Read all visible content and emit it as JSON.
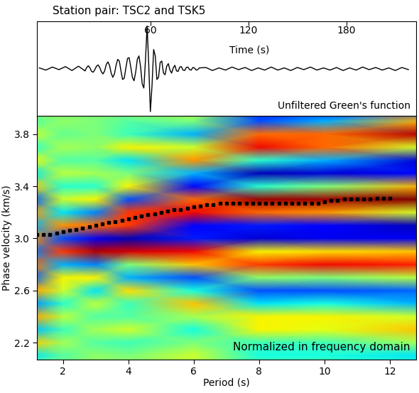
{
  "chart_data": [
    {
      "type": "line",
      "title": "Station pair: TSC2 and TSK5",
      "xlabel": "Time (s)",
      "annotation": "Unfiltered Green's function",
      "x": [
        -8,
        -4,
        0,
        4,
        8,
        12,
        16,
        20,
        21,
        22,
        23,
        24,
        25,
        26,
        27,
        28,
        29,
        30,
        31,
        32,
        33,
        34,
        35,
        36,
        37,
        38,
        39,
        40,
        41,
        42,
        43,
        44,
        45,
        46,
        47,
        48,
        49,
        50,
        51,
        52,
        53,
        54,
        55,
        56,
        57,
        58,
        59,
        60,
        61,
        62,
        63,
        64,
        65,
        66,
        67,
        68,
        69,
        70,
        71,
        72,
        73,
        74,
        75,
        76,
        77,
        78,
        79,
        80,
        81,
        82,
        83,
        84,
        85,
        86,
        87,
        88,
        89,
        90,
        94,
        98,
        102,
        106,
        110,
        114,
        118,
        122,
        126,
        130,
        134,
        138,
        142,
        146,
        150,
        154,
        158,
        162,
        166,
        170,
        174,
        178,
        182,
        186,
        190,
        194,
        198,
        202,
        206,
        210,
        214,
        218
      ],
      "values": [
        0.02,
        -0.03,
        0.04,
        -0.02,
        0.05,
        -0.04,
        0.06,
        -0.05,
        0.03,
        0.07,
        0.02,
        -0.06,
        -0.08,
        -0.02,
        0.06,
        0.09,
        0.03,
        -0.07,
        -0.12,
        -0.05,
        0.1,
        0.16,
        0.08,
        -0.1,
        -0.2,
        -0.12,
        0.08,
        0.22,
        0.18,
        -0.05,
        -0.25,
        -0.22,
        0.02,
        0.24,
        0.26,
        0.04,
        -0.2,
        -0.28,
        -0.08,
        0.22,
        0.3,
        0.05,
        -0.35,
        -0.45,
        0.2,
        1.0,
        0.1,
        -1.0,
        -0.4,
        0.45,
        0.3,
        -0.25,
        -0.2,
        0.15,
        0.18,
        -0.1,
        -0.14,
        0.06,
        0.12,
        -0.03,
        -0.1,
        0.02,
        0.08,
        -0.05,
        -0.06,
        0.04,
        0.05,
        -0.03,
        -0.04,
        0.03,
        0.04,
        -0.02,
        -0.03,
        0.03,
        0.02,
        -0.03,
        -0.02,
        0.02,
        0.03,
        -0.04,
        0.02,
        -0.03,
        0.04,
        -0.02,
        0.03,
        -0.04,
        0.02,
        -0.03,
        0.04,
        -0.03,
        0.02,
        -0.04,
        0.03,
        -0.02,
        0.04,
        -0.03,
        0.02,
        -0.03,
        0.03,
        -0.04,
        0.02,
        -0.03,
        0.04,
        -0.02,
        0.03,
        -0.03,
        0.02,
        -0.04,
        0.03,
        -0.02
      ],
      "color": "black",
      "xlim": [
        -9.5,
        222.7
      ],
      "xticks": [
        60,
        120,
        180
      ],
      "ylim": [
        -1.1,
        1.1
      ],
      "yticks": [],
      "tick_labels": "x"
    },
    {
      "type": "heatmap",
      "xlabel": "Period (s)",
      "ylabel": "Phase velocity (km/s)",
      "annotation": "Normalized in frequency domain",
      "x": [
        1,
        2,
        3,
        4,
        6,
        8,
        10,
        13
      ],
      "y": [
        2.0,
        2.1,
        2.2,
        2.3,
        2.4,
        2.5,
        2.6,
        2.7,
        2.8,
        2.9,
        3.0,
        3.1,
        3.2,
        3.3,
        3.4,
        3.5,
        3.6,
        3.7,
        3.8,
        3.9,
        4.0
      ],
      "cells": [
        [
          0.1,
          0.05,
          0,
          0.1,
          0,
          0,
          0,
          -0.2
        ],
        [
          -0.3,
          -0.1,
          0.05,
          0,
          0.2,
          -0.25,
          -0.25,
          -0.3
        ],
        [
          0.4,
          0.1,
          -0.1,
          -0.15,
          0,
          -0.15,
          -0.15,
          0.1
        ],
        [
          -0.4,
          -0.15,
          0.1,
          0.2,
          -0.25,
          0.3,
          0.25,
          0.4
        ],
        [
          0.5,
          0.15,
          -0.1,
          -0.1,
          0.1,
          0.3,
          0.3,
          0.2
        ],
        [
          -0.5,
          -0.2,
          0.15,
          -0.15,
          0.4,
          -0.3,
          -0.25,
          -0.4
        ],
        [
          0.5,
          0.2,
          -0.3,
          0.35,
          -0.25,
          -0.6,
          -0.6,
          -0.55
        ],
        [
          -0.6,
          0.3,
          0.3,
          -0.4,
          -0.6,
          0.05,
          0,
          0.15
        ],
        [
          0.6,
          -0.4,
          -0.5,
          0,
          0.4,
          0.7,
          0.8,
          0.75
        ],
        [
          -0.5,
          0.7,
          0.9,
          0.85,
          0.8,
          0.3,
          0.35,
          0.4
        ],
        [
          0.5,
          -0.6,
          -0.8,
          -0.9,
          -0.7,
          -0.85,
          -0.8,
          -0.8
        ],
        [
          -0.4,
          0.5,
          0.6,
          0.7,
          -0.75,
          -0.7,
          -0.75,
          -0.9
        ],
        [
          0.5,
          -0.3,
          -0.5,
          0.7,
          0.8,
          0.6,
          0.5,
          0.2
        ],
        [
          -0.6,
          0.2,
          0.3,
          -0.6,
          0.6,
          0.95,
          0.95,
          1.0
        ],
        [
          0.4,
          -0.2,
          -0.2,
          0.3,
          -0.75,
          -0.2,
          0,
          0.45
        ],
        [
          -0.3,
          0.15,
          0.1,
          0,
          -0.4,
          -0.9,
          -0.85,
          -0.75
        ],
        [
          0.3,
          -0.1,
          -0.1,
          -0.3,
          0.5,
          -0.2,
          -0.4,
          -0.85
        ],
        [
          -0.2,
          0.1,
          0.05,
          0.3,
          0.2,
          0.8,
          0.6,
          0.2
        ],
        [
          0.2,
          -0.05,
          0,
          -0.15,
          -0.4,
          0.6,
          0.6,
          0.9
        ],
        [
          -0.1,
          0.05,
          0,
          -0.1,
          0,
          -0.6,
          -0.4,
          0.45
        ],
        [
          0.1,
          0,
          0,
          0.1,
          0.2,
          -0.7,
          -0.8,
          -0.6
        ]
      ],
      "color_range": [
        -1,
        1
      ],
      "picks": {
        "x": [
          1.2,
          1.4,
          1.6,
          1.8,
          2.0,
          2.2,
          2.4,
          2.6,
          2.8,
          3.0,
          3.2,
          3.4,
          3.6,
          3.8,
          4.0,
          4.2,
          4.4,
          4.6,
          4.8,
          5.0,
          5.2,
          5.4,
          5.6,
          5.8,
          6.0,
          6.2,
          6.4,
          6.6,
          6.8,
          7.0,
          7.2,
          7.4,
          7.6,
          7.8,
          8.0,
          8.2,
          8.4,
          8.6,
          8.8,
          9.0,
          9.2,
          9.4,
          9.6,
          9.8,
          10.0,
          10.2,
          10.4,
          10.6,
          10.8,
          11.0,
          11.2,
          11.4,
          11.6,
          11.8,
          12.0
        ],
        "values": [
          3.03,
          3.03,
          3.03,
          3.04,
          3.05,
          3.06,
          3.07,
          3.08,
          3.09,
          3.1,
          3.11,
          3.12,
          3.13,
          3.14,
          3.15,
          3.16,
          3.17,
          3.18,
          3.19,
          3.2,
          3.21,
          3.22,
          3.22,
          3.23,
          3.24,
          3.25,
          3.26,
          3.26,
          3.27,
          3.27,
          3.27,
          3.27,
          3.27,
          3.27,
          3.27,
          3.27,
          3.27,
          3.27,
          3.27,
          3.27,
          3.27,
          3.27,
          3.27,
          3.27,
          3.28,
          3.29,
          3.29,
          3.3,
          3.3,
          3.3,
          3.3,
          3.3,
          3.31,
          3.31,
          3.31
        ],
        "color": "black",
        "marker": "s"
      },
      "xlim": [
        1.2,
        12.8
      ],
      "xticks": [
        2,
        4,
        6,
        8,
        10,
        12
      ],
      "ylim": [
        2.07,
        3.94
      ],
      "yticks": [
        2.2,
        2.6,
        3.0,
        3.4,
        3.8
      ]
    }
  ]
}
